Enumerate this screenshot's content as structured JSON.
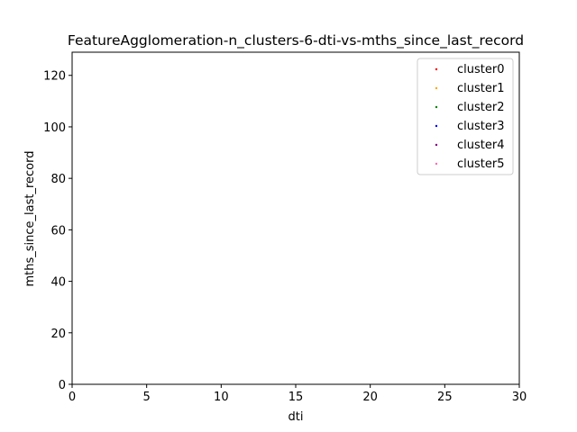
{
  "chart_data": {
    "type": "scatter",
    "title": "FeatureAgglomeration-n_clusters-6-dti-vs-mths_since_last_record",
    "xlabel": "dti",
    "ylabel": "mths_since_last_record",
    "xlim": [
      0,
      30
    ],
    "ylim": [
      0,
      129
    ],
    "xticks": [
      0,
      5,
      10,
      15,
      20,
      25,
      30
    ],
    "yticks": [
      0,
      20,
      40,
      60,
      80,
      100,
      120
    ],
    "grid": false,
    "legend_position": "top-right",
    "series": [
      {
        "name": "cluster0",
        "color": "#ff0000",
        "points": []
      },
      {
        "name": "cluster1",
        "color": "#ffa500",
        "points": []
      },
      {
        "name": "cluster2",
        "color": "#008000",
        "points": []
      },
      {
        "name": "cluster3",
        "color": "#0000ff",
        "points": []
      },
      {
        "name": "cluster4",
        "color": "#800080",
        "points": []
      },
      {
        "name": "cluster5",
        "color": "#ff69b4",
        "points": []
      }
    ]
  }
}
